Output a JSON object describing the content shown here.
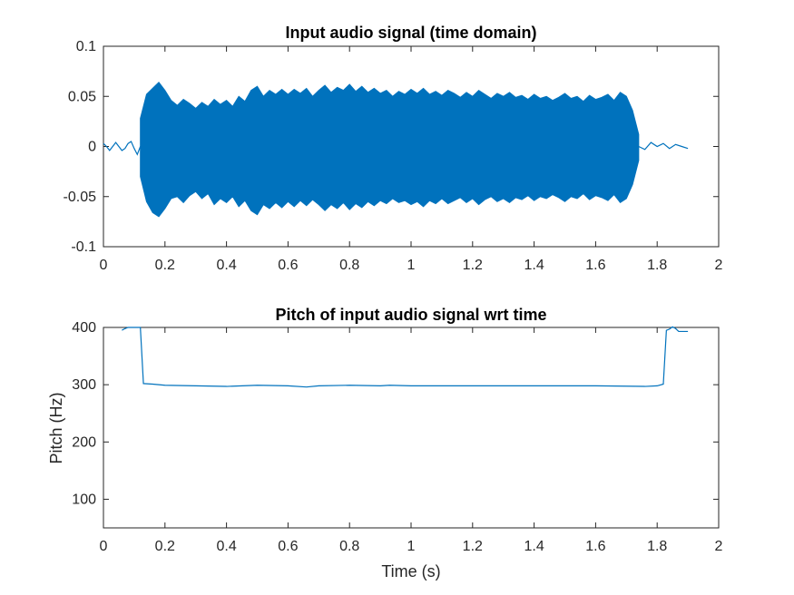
{
  "figure": {
    "background": "#ffffff"
  },
  "chart_data": [
    {
      "type": "line",
      "title": "Input audio signal (time domain)",
      "xlabel": "",
      "ylabel": "",
      "xlim": [
        0,
        2
      ],
      "ylim": [
        -0.1,
        0.1
      ],
      "xticks": [
        0,
        0.2,
        0.4,
        0.6,
        0.8,
        1,
        1.2,
        1.4,
        1.6,
        1.8,
        2
      ],
      "xtick_labels": [
        "0",
        "0.2",
        "0.4",
        "0.6",
        "0.8",
        "1",
        "1.2",
        "1.4",
        "1.6",
        "1.8",
        "2"
      ],
      "yticks": [
        -0.1,
        -0.05,
        0,
        0.05,
        0.1
      ],
      "ytick_labels": [
        "-0.1",
        "-0.05",
        "0",
        "0.05",
        "0.1"
      ],
      "grid": false,
      "color": "#0072BD",
      "series": [
        {
          "label": "upper envelope",
          "x": [
            0.12,
            0.14,
            0.16,
            0.18,
            0.2,
            0.22,
            0.24,
            0.26,
            0.28,
            0.3,
            0.32,
            0.34,
            0.36,
            0.38,
            0.4,
            0.42,
            0.44,
            0.46,
            0.48,
            0.5,
            0.52,
            0.54,
            0.56,
            0.58,
            0.6,
            0.62,
            0.64,
            0.66,
            0.68,
            0.7,
            0.72,
            0.74,
            0.76,
            0.78,
            0.8,
            0.82,
            0.84,
            0.86,
            0.88,
            0.9,
            0.92,
            0.94,
            0.96,
            0.98,
            1.0,
            1.02,
            1.04,
            1.06,
            1.08,
            1.1,
            1.12,
            1.14,
            1.16,
            1.18,
            1.2,
            1.22,
            1.24,
            1.26,
            1.28,
            1.3,
            1.32,
            1.34,
            1.36,
            1.38,
            1.4,
            1.42,
            1.44,
            1.46,
            1.48,
            1.5,
            1.52,
            1.54,
            1.56,
            1.58,
            1.6,
            1.62,
            1.64,
            1.66,
            1.68,
            1.7,
            1.72,
            1.74
          ],
          "y": [
            0.028,
            0.052,
            0.058,
            0.064,
            0.056,
            0.046,
            0.041,
            0.047,
            0.043,
            0.038,
            0.044,
            0.04,
            0.047,
            0.042,
            0.046,
            0.04,
            0.05,
            0.045,
            0.056,
            0.06,
            0.05,
            0.056,
            0.052,
            0.057,
            0.052,
            0.057,
            0.053,
            0.058,
            0.05,
            0.056,
            0.061,
            0.054,
            0.059,
            0.056,
            0.062,
            0.055,
            0.06,
            0.054,
            0.058,
            0.053,
            0.056,
            0.05,
            0.055,
            0.052,
            0.057,
            0.053,
            0.058,
            0.052,
            0.055,
            0.051,
            0.056,
            0.053,
            0.049,
            0.054,
            0.05,
            0.056,
            0.052,
            0.048,
            0.053,
            0.05,
            0.054,
            0.049,
            0.051,
            0.047,
            0.052,
            0.048,
            0.05,
            0.046,
            0.049,
            0.053,
            0.048,
            0.05,
            0.045,
            0.051,
            0.047,
            0.049,
            0.052,
            0.046,
            0.054,
            0.05,
            0.036,
            0.012
          ]
        },
        {
          "label": "lower envelope",
          "x": [
            0.12,
            0.14,
            0.16,
            0.18,
            0.2,
            0.22,
            0.24,
            0.26,
            0.28,
            0.3,
            0.32,
            0.34,
            0.36,
            0.38,
            0.4,
            0.42,
            0.44,
            0.46,
            0.48,
            0.5,
            0.52,
            0.54,
            0.56,
            0.58,
            0.6,
            0.62,
            0.64,
            0.66,
            0.68,
            0.7,
            0.72,
            0.74,
            0.76,
            0.78,
            0.8,
            0.82,
            0.84,
            0.86,
            0.88,
            0.9,
            0.92,
            0.94,
            0.96,
            0.98,
            1.0,
            1.02,
            1.04,
            1.06,
            1.08,
            1.1,
            1.12,
            1.14,
            1.16,
            1.18,
            1.2,
            1.22,
            1.24,
            1.26,
            1.28,
            1.3,
            1.32,
            1.34,
            1.36,
            1.38,
            1.4,
            1.42,
            1.44,
            1.46,
            1.48,
            1.5,
            1.52,
            1.54,
            1.56,
            1.58,
            1.6,
            1.62,
            1.64,
            1.66,
            1.68,
            1.7,
            1.72,
            1.74
          ],
          "y": [
            -0.03,
            -0.055,
            -0.066,
            -0.07,
            -0.062,
            -0.052,
            -0.05,
            -0.056,
            -0.049,
            -0.045,
            -0.052,
            -0.047,
            -0.058,
            -0.052,
            -0.056,
            -0.05,
            -0.06,
            -0.054,
            -0.064,
            -0.068,
            -0.058,
            -0.062,
            -0.056,
            -0.061,
            -0.055,
            -0.06,
            -0.054,
            -0.059,
            -0.053,
            -0.058,
            -0.064,
            -0.058,
            -0.062,
            -0.056,
            -0.063,
            -0.057,
            -0.061,
            -0.055,
            -0.059,
            -0.054,
            -0.057,
            -0.052,
            -0.056,
            -0.054,
            -0.058,
            -0.055,
            -0.06,
            -0.054,
            -0.057,
            -0.052,
            -0.057,
            -0.054,
            -0.051,
            -0.056,
            -0.052,
            -0.058,
            -0.053,
            -0.05,
            -0.055,
            -0.052,
            -0.056,
            -0.051,
            -0.053,
            -0.049,
            -0.054,
            -0.05,
            -0.052,
            -0.048,
            -0.051,
            -0.055,
            -0.05,
            -0.052,
            -0.047,
            -0.053,
            -0.049,
            -0.051,
            -0.054,
            -0.048,
            -0.056,
            -0.052,
            -0.038,
            -0.014
          ]
        },
        {
          "label": "lead-in",
          "x": [
            0.0,
            0.01,
            0.02,
            0.03,
            0.04,
            0.05,
            0.06,
            0.07,
            0.08,
            0.09,
            0.1,
            0.11,
            0.12
          ],
          "y": [
            0.003,
            0.0,
            -0.004,
            0.0,
            0.004,
            0.0,
            -0.004,
            -0.002,
            0.003,
            0.005,
            -0.002,
            -0.008,
            0.0
          ]
        },
        {
          "label": "tail",
          "x": [
            1.74,
            1.76,
            1.78,
            1.8,
            1.82,
            1.84,
            1.86,
            1.88,
            1.9
          ],
          "y": [
            0.0,
            -0.003,
            0.004,
            0.0,
            0.003,
            -0.002,
            0.002,
            0.0,
            -0.002
          ]
        }
      ]
    },
    {
      "type": "line",
      "title": "Pitch of input audio signal wrt time",
      "xlabel": "Time (s)",
      "ylabel": "Pitch (Hz)",
      "xlim": [
        0,
        2
      ],
      "ylim": [
        50,
        400
      ],
      "xticks": [
        0,
        0.2,
        0.4,
        0.6,
        0.8,
        1,
        1.2,
        1.4,
        1.6,
        1.8,
        2
      ],
      "xtick_labels": [
        "0",
        "0.2",
        "0.4",
        "0.6",
        "0.8",
        "1",
        "1.2",
        "1.4",
        "1.6",
        "1.8",
        "2"
      ],
      "yticks": [
        100,
        200,
        300,
        400
      ],
      "ytick_labels": [
        "100",
        "200",
        "300",
        "400"
      ],
      "grid": false,
      "color": "#0072BD",
      "series": [
        {
          "x": [
            0.06,
            0.07,
            0.08,
            0.1,
            0.11,
            0.12,
            0.13,
            0.16,
            0.2,
            0.3,
            0.4,
            0.5,
            0.6,
            0.66,
            0.7,
            0.8,
            0.9,
            0.93,
            1.0,
            1.2,
            1.4,
            1.6,
            1.76,
            1.8,
            1.82,
            1.83,
            1.84,
            1.85,
            1.86,
            1.87,
            1.88,
            1.9
          ],
          "y": [
            395,
            398,
            400,
            400,
            400,
            400,
            302,
            301,
            299,
            298,
            297,
            299,
            298,
            296,
            298,
            299,
            298,
            299,
            298,
            298,
            298,
            298,
            297,
            298,
            301,
            395,
            397,
            401,
            398,
            393,
            393,
            393
          ]
        }
      ]
    }
  ]
}
